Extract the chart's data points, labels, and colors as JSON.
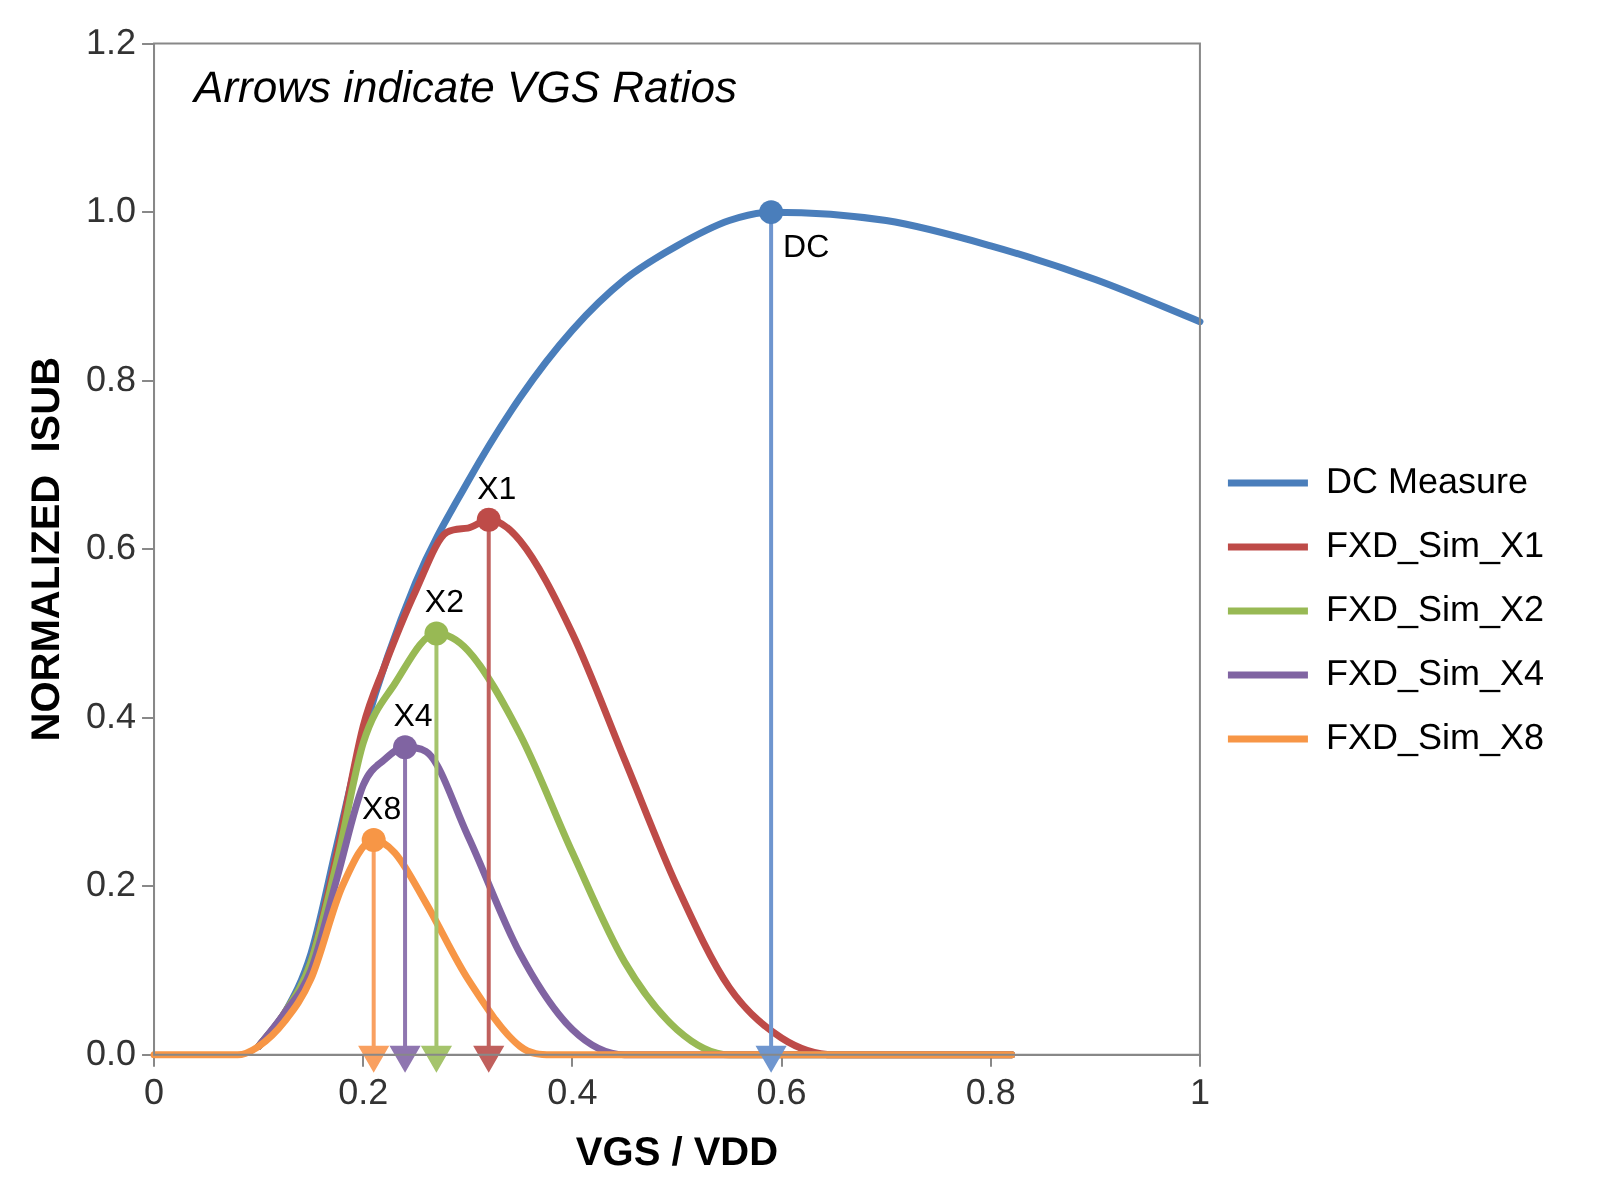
{
  "chart_data": {
    "type": "line",
    "xlabel": "VGS / VDD",
    "ylabel": "NORMALIZED  ISUB",
    "xlim": [
      0,
      1
    ],
    "ylim": [
      0,
      1.2
    ],
    "xticks": [
      0,
      0.2,
      0.4,
      0.6,
      0.8,
      1
    ],
    "yticks": [
      {
        "value": 0,
        "label": "0.0"
      },
      {
        "value": 0.2,
        "label": "0.2"
      },
      {
        "value": 0.4,
        "label": "0.4"
      },
      {
        "value": 0.6,
        "label": "0.6"
      },
      {
        "value": 0.8,
        "label": "0.8"
      },
      {
        "value": 1,
        "label": "1.0"
      },
      {
        "value": 1.2,
        "label": "1.2"
      }
    ],
    "grid": false,
    "legend": "right",
    "marker": "none",
    "line_style": "solid",
    "series": [
      {
        "name": "DC Measure",
        "color": "#4a7ebb",
        "x": [
          0.1,
          0.125,
          0.15,
          0.175,
          0.2,
          0.25,
          0.3,
          0.35,
          0.4,
          0.45,
          0.5,
          0.55,
          0.59,
          0.7,
          0.8,
          0.9,
          1
        ],
        "values": [
          0.01,
          0.05,
          0.12,
          0.25,
          0.38,
          0.56,
          0.68,
          0.78,
          0.86,
          0.92,
          0.96,
          0.99,
          1.0,
          0.99,
          0.96,
          0.92,
          0.87
        ]
      },
      {
        "name": "FXD_Sim_X1",
        "color": "#be4b48",
        "x": [
          0.1,
          0.125,
          0.15,
          0.175,
          0.2,
          0.22,
          0.25,
          0.28,
          0.3,
          0.32,
          0.35,
          0.4,
          0.45,
          0.5,
          0.55,
          0.6,
          0.65,
          0.82
        ],
        "values": [
          0.01,
          0.05,
          0.11,
          0.24,
          0.39,
          0.46,
          0.55,
          0.62,
          0.625,
          0.635,
          0.61,
          0.5,
          0.35,
          0.2,
          0.08,
          0.02,
          0,
          0
        ]
      },
      {
        "name": "FXD_Sim_X2",
        "color": "#98b954",
        "x": [
          0.1,
          0.125,
          0.15,
          0.175,
          0.2,
          0.23,
          0.27,
          0.3,
          0.35,
          0.4,
          0.45,
          0.5,
          0.55,
          0.82
        ],
        "values": [
          0.01,
          0.05,
          0.11,
          0.23,
          0.37,
          0.44,
          0.5,
          0.48,
          0.38,
          0.24,
          0.11,
          0.03,
          0,
          0
        ]
      },
      {
        "name": "FXD_Sim_X4",
        "color": "#8064a2",
        "x": [
          0.1,
          0.125,
          0.15,
          0.175,
          0.2,
          0.22,
          0.24,
          0.26,
          0.3,
          0.35,
          0.4,
          0.45,
          0.82
        ],
        "values": [
          0.01,
          0.05,
          0.1,
          0.21,
          0.32,
          0.35,
          0.365,
          0.36,
          0.26,
          0.12,
          0.03,
          0,
          0
        ]
      },
      {
        "name": "FXD_Sim_X8",
        "color": "#f79646",
        "x": [
          0,
          0.08,
          0.1,
          0.125,
          0.15,
          0.18,
          0.21,
          0.23,
          0.26,
          0.3,
          0.35,
          0.38,
          0.82
        ],
        "values": [
          0,
          0,
          0.01,
          0.04,
          0.09,
          0.2,
          0.255,
          0.24,
          0.18,
          0.09,
          0.01,
          0,
          0
        ]
      },
      {
        "type": "line",
        "color": "#6f96cf",
        "marker": "triangle",
        "x": [
          0.59,
          0.59
        ],
        "values": [
          1.0,
          0
        ]
      },
      {
        "type": "line",
        "color": "#c0605d",
        "marker": "triangle",
        "x": [
          0.32,
          0.32
        ],
        "values": [
          0.635,
          0
        ]
      },
      {
        "type": "line",
        "color": "#a5c46c",
        "marker": "triangle",
        "x": [
          0.27,
          0.27
        ],
        "values": [
          0.5,
          0
        ]
      },
      {
        "type": "line",
        "color": "#8f76b0",
        "marker": "triangle",
        "x": [
          0.24,
          0.24
        ],
        "values": [
          0.365,
          0
        ]
      },
      {
        "type": "line",
        "color": "#f9a060",
        "marker": "triangle",
        "x": [
          0.21,
          0.21
        ],
        "values": [
          0.255,
          0
        ]
      }
    ],
    "annotations": [
      {
        "text": "DC",
        "x": 0.59,
        "y": 1.0
      },
      {
        "text": "X1",
        "x": 0.32,
        "y": 0.635
      },
      {
        "text": "X2",
        "x": 0.27,
        "y": 0.5
      },
      {
        "text": "X4",
        "x": 0.24,
        "y": 0.365
      },
      {
        "text": "X8",
        "x": 0.21,
        "y": 0.255
      },
      "Arrows indicate VGS Ratios"
    ]
  }
}
